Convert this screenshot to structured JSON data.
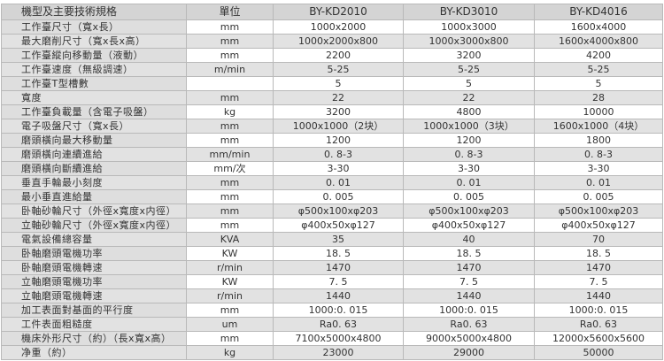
{
  "header": {
    "spec": "機型及主要技術規格",
    "unit": "單位",
    "models": [
      "BY-KD2010",
      "BY-KD3010",
      "BY-KD4016"
    ]
  },
  "rows": [
    {
      "name": "工作臺尺寸（寬x長）",
      "unit": "mm",
      "values": [
        "1000x2000",
        "1000x3000",
        "1600x4000"
      ]
    },
    {
      "name": "最大磨削尺寸（寬x長x高）",
      "unit": "mm",
      "values": [
        "1000x2000x800",
        "1000x3000x800",
        "1600x4000x800"
      ]
    },
    {
      "name": "工作臺縱向移動量（液動）",
      "unit": "mm",
      "values": [
        "2200",
        "3200",
        "4200"
      ]
    },
    {
      "name": "工作臺速度（無級調速）",
      "unit": "m/min",
      "values": [
        "5-25",
        "5-25",
        "5-25"
      ]
    },
    {
      "name": "工作臺T型槽數",
      "unit": "",
      "values": [
        "5",
        "5",
        "5"
      ]
    },
    {
      "name": "寬度",
      "unit": "mm",
      "values": [
        "22",
        "22",
        "28"
      ]
    },
    {
      "name": "工作臺負載量（含電子吸盤）",
      "unit": "kg",
      "values": [
        "3200",
        "4800",
        "10000"
      ]
    },
    {
      "name": "電子吸盤尺寸（寬x長）",
      "unit": "mm",
      "values": [
        "1000x1000（2块）",
        "1000x1000（3块）",
        "1600x1000（4块）"
      ]
    },
    {
      "name": "磨頭橫向最大移動量",
      "unit": "mm",
      "values": [
        "1200",
        "1200",
        "1800"
      ]
    },
    {
      "name": "磨頭橫向連續進給",
      "unit": "mm/min",
      "values": [
        "0. 8-3",
        "0. 8-3",
        "0. 8-3"
      ]
    },
    {
      "name": "磨頭橫向斷續進給",
      "unit": "mm/次",
      "values": [
        "3-30",
        "3-30",
        "3-30"
      ]
    },
    {
      "name": "垂直手輪最小刻度",
      "unit": "mm",
      "values": [
        "0. 01",
        "0. 01",
        "0. 01"
      ]
    },
    {
      "name": "最小垂直進給量",
      "unit": "mm",
      "values": [
        "0. 005",
        "0. 005",
        "0. 005"
      ]
    },
    {
      "name": "卧軸砂輪尺寸（外徑x寬度x内徑）",
      "unit": "mm",
      "values": [
        "φ500x100xφ203",
        "φ500x100xφ203",
        "φ500x100xφ203"
      ]
    },
    {
      "name": "立軸砂輪尺寸（外徑x寬度x内徑）",
      "unit": "mm",
      "values": [
        "φ400x50xφ127",
        "φ400x50xφ127",
        "φ400x50xφ127"
      ]
    },
    {
      "name": "電氣設備總容量",
      "unit": "KVA",
      "values": [
        "35",
        "40",
        "70"
      ]
    },
    {
      "name": "卧軸磨頭電機功率",
      "unit": "KW",
      "values": [
        "18. 5",
        "18. 5",
        "18. 5"
      ]
    },
    {
      "name": "卧軸磨頭電機轉速",
      "unit": "r/min",
      "values": [
        "1470",
        "1470",
        "1470"
      ]
    },
    {
      "name": "立軸磨頭電機功率",
      "unit": "KW",
      "values": [
        "7. 5",
        "7. 5",
        "7. 5"
      ]
    },
    {
      "name": "立軸磨頭電機轉速",
      "unit": "r/min",
      "values": [
        "1440",
        "1440",
        "1440"
      ]
    },
    {
      "name": "加工表面對基面的平行度",
      "unit": "mm",
      "values": [
        "1000:0. 015",
        "1000:0. 015",
        "1000:0. 015"
      ]
    },
    {
      "name": "工件表面粗糙度",
      "unit": "um",
      "values": [
        "Ra0. 63",
        "Ra0. 63",
        "Ra0. 63"
      ]
    },
    {
      "name": "機床外形尺寸（約）（長x寬x高）",
      "unit": "mm",
      "values": [
        "7100x5000x4800",
        "9000x5000x4800",
        "12000x5600x5600"
      ]
    },
    {
      "name": "净重（約）",
      "unit": "kg",
      "values": [
        "23000",
        "29000",
        "50000"
      ]
    }
  ]
}
